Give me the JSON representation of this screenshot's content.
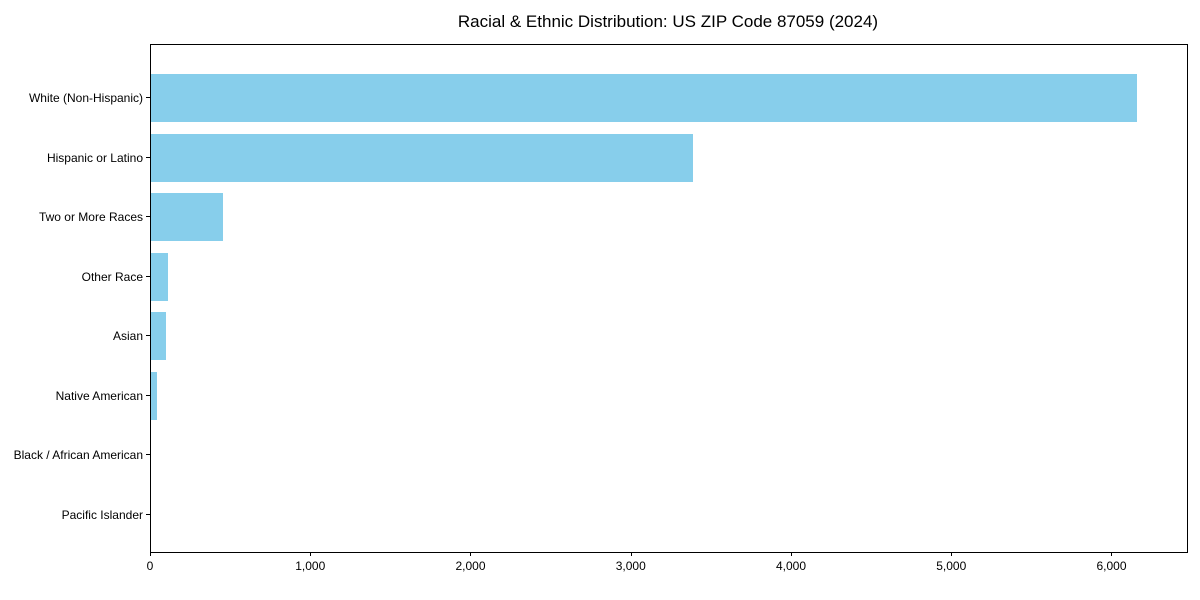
{
  "chart_data": {
    "type": "bar",
    "orientation": "horizontal",
    "title": "Racial & Ethnic Distribution: US ZIP Code 87059 (2024)",
    "categories": [
      "White (Non-Hispanic)",
      "Hispanic or Latino",
      "Two or More Races",
      "Other Race",
      "Asian",
      "Native American",
      "Black / African American",
      "Pacific Islander"
    ],
    "values": [
      6155,
      3380,
      450,
      105,
      95,
      40,
      0,
      0
    ],
    "xlabel": "",
    "ylabel": "",
    "xlim": [
      0,
      6465
    ],
    "x_ticks": [
      0,
      1000,
      2000,
      3000,
      4000,
      5000,
      6000
    ],
    "x_tick_labels": [
      "0",
      "1,000",
      "2,000",
      "3,000",
      "4,000",
      "5,000",
      "6,000"
    ],
    "bar_color": "#87CEEB",
    "axis_color": "#000000",
    "text_color": "#000000",
    "background_color": "#ffffff",
    "grid": false,
    "legend": null
  }
}
